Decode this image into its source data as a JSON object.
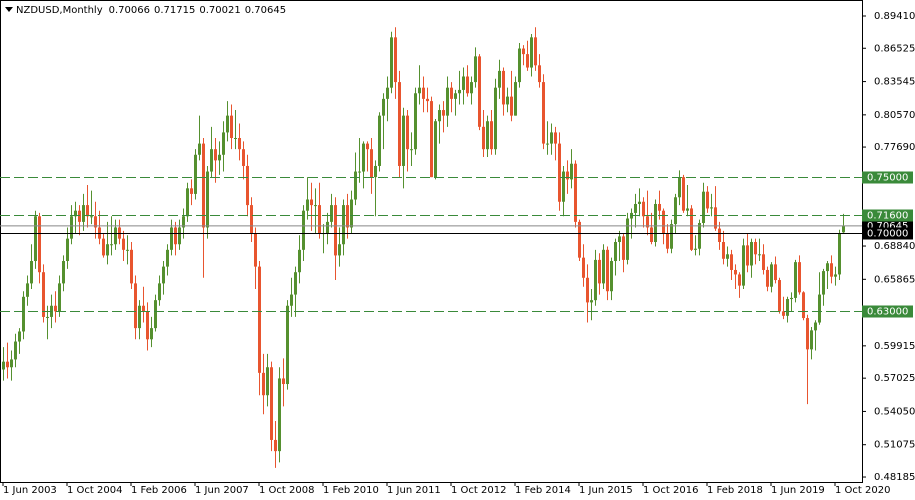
{
  "chart_data": {
    "type": "candlestick",
    "symbol": "NZDUSD,Monthly",
    "up_color": "#55902f",
    "down_color": "#e8552f",
    "xlim": [
      -0.75,
      214.75
    ],
    "ylim": [
      0.4774,
      0.9084
    ],
    "xticks": [
      {
        "value": 0,
        "label": "1 Jun 2003"
      },
      {
        "value": 16,
        "label": "1 Oct 2004"
      },
      {
        "value": 32,
        "label": "1 Feb 2006"
      },
      {
        "value": 48,
        "label": "1 Jun 2007"
      },
      {
        "value": 64,
        "label": "1 Oct 2008"
      },
      {
        "value": 80,
        "label": "1 Feb 2010"
      },
      {
        "value": 96,
        "label": "1 Jun 2011"
      },
      {
        "value": 112,
        "label": "1 Oct 2012"
      },
      {
        "value": 128,
        "label": "1 Feb 2014"
      },
      {
        "value": 144,
        "label": "1 Jun 2015"
      },
      {
        "value": 160,
        "label": "1 Oct 2016"
      },
      {
        "value": 176,
        "label": "1 Feb 2018"
      },
      {
        "value": 192,
        "label": "1 Jun 2019"
      },
      {
        "value": 208,
        "label": "1 Oct 2020"
      }
    ],
    "yticks": [
      {
        "value": 0.8941,
        "label": "0.89410"
      },
      {
        "value": 0.86525,
        "label": "0.86525"
      },
      {
        "value": 0.83545,
        "label": "0.83545"
      },
      {
        "value": 0.8057,
        "label": "0.80570"
      },
      {
        "value": 0.7769,
        "label": "0.77690"
      },
      {
        "value": 0.6884,
        "label": "0.68840"
      },
      {
        "value": 0.65865,
        "label": "0.65865"
      },
      {
        "value": 0.59915,
        "label": "0.59915"
      },
      {
        "value": 0.57025,
        "label": "0.57025"
      },
      {
        "value": 0.5405,
        "label": "0.54050"
      },
      {
        "value": 0.51075,
        "label": "0.51075"
      },
      {
        "value": 0.48185,
        "label": "0.48185"
      }
    ],
    "levels": [
      {
        "value": 0.75,
        "label": "0.75000",
        "color": "#3a8a3a",
        "dash": true
      },
      {
        "value": 0.716,
        "label": "0.71600",
        "color": "#3a8a3a",
        "dash": true
      },
      {
        "value": 0.63,
        "label": "0.63000",
        "color": "#3a8a3a",
        "dash": true
      },
      {
        "value": 0.7,
        "label": "0.70000",
        "color": "#000000",
        "dash": false
      }
    ],
    "open": [
      0.578,
      0.585,
      0.58,
      0.587,
      0.603,
      0.612,
      0.643,
      0.655,
      0.675,
      0.715,
      0.665,
      0.625,
      0.625,
      0.635,
      0.63,
      0.655,
      0.675,
      0.695,
      0.715,
      0.72,
      0.71,
      0.725,
      0.715,
      0.715,
      0.705,
      0.695,
      0.68,
      0.69,
      0.69,
      0.705,
      0.695,
      0.685,
      0.685,
      0.655,
      0.615,
      0.635,
      0.63,
      0.605,
      0.615,
      0.64,
      0.655,
      0.67,
      0.685,
      0.705,
      0.69,
      0.705,
      0.715,
      0.74,
      0.735,
      0.77,
      0.78,
      0.705,
      0.755,
      0.775,
      0.765,
      0.77,
      0.79,
      0.805,
      0.785,
      0.785,
      0.775,
      0.76,
      0.725,
      0.7,
      0.67,
      0.575,
      0.555,
      0.58,
      0.515,
      0.505,
      0.57,
      0.565,
      0.635,
      0.645,
      0.665,
      0.685,
      0.72,
      0.73,
      0.725,
      0.725,
      0.7,
      0.7,
      0.71,
      0.725,
      0.68,
      0.69,
      0.725,
      0.705,
      0.73,
      0.755,
      0.755,
      0.78,
      0.775,
      0.75,
      0.76,
      0.805,
      0.82,
      0.83,
      0.875,
      0.835,
      0.76,
      0.805,
      0.775,
      0.775,
      0.825,
      0.83,
      0.82,
      0.818,
      0.75,
      0.8,
      0.81,
      0.805,
      0.83,
      0.82,
      0.825,
      0.828,
      0.84,
      0.825,
      0.835,
      0.858,
      0.795,
      0.775,
      0.8,
      0.775,
      0.83,
      0.845,
      0.815,
      0.822,
      0.805,
      0.835,
      0.865,
      0.86,
      0.848,
      0.875,
      0.85,
      0.835,
      0.78,
      0.78,
      0.79,
      0.78,
      0.728,
      0.755,
      0.748,
      0.762,
      0.71,
      0.678,
      0.66,
      0.638,
      0.64,
      0.676,
      0.655,
      0.685,
      0.648,
      0.675,
      0.692,
      0.697,
      0.676,
      0.713,
      0.718,
      0.726,
      0.728,
      0.715,
      0.705,
      0.692,
      0.726,
      0.72,
      0.7,
      0.686,
      0.708,
      0.732,
      0.75,
      0.72,
      0.722,
      0.685,
      0.686,
      0.709,
      0.737,
      0.722,
      0.723,
      0.704,
      0.692,
      0.677,
      0.681,
      0.667,
      0.663,
      0.653,
      0.689,
      0.671,
      0.692,
      0.681,
      0.681,
      0.667,
      0.652,
      0.672,
      0.658,
      0.63,
      0.626,
      0.641,
      0.642,
      0.674,
      0.647,
      0.624,
      0.596,
      0.613,
      0.62,
      0.645,
      0.666,
      0.673,
      0.661,
      0.663,
      0.70066
    ],
    "high": [
      0.598,
      0.602,
      0.595,
      0.61,
      0.615,
      0.648,
      0.662,
      0.69,
      0.72,
      0.718,
      0.672,
      0.635,
      0.645,
      0.648,
      0.662,
      0.68,
      0.705,
      0.725,
      0.728,
      0.725,
      0.735,
      0.743,
      0.738,
      0.728,
      0.72,
      0.7,
      0.71,
      0.715,
      0.712,
      0.712,
      0.702,
      0.698,
      0.692,
      0.662,
      0.64,
      0.652,
      0.638,
      0.625,
      0.645,
      0.662,
      0.675,
      0.69,
      0.712,
      0.71,
      0.712,
      0.722,
      0.745,
      0.748,
      0.775,
      0.805,
      0.785,
      0.76,
      0.795,
      0.785,
      0.782,
      0.8,
      0.818,
      0.815,
      0.81,
      0.798,
      0.782,
      0.77,
      0.732,
      0.705,
      0.675,
      0.592,
      0.592,
      0.585,
      0.532,
      0.58,
      0.588,
      0.64,
      0.66,
      0.67,
      0.698,
      0.725,
      0.75,
      0.745,
      0.74,
      0.745,
      0.708,
      0.718,
      0.735,
      0.732,
      0.705,
      0.73,
      0.735,
      0.738,
      0.772,
      0.785,
      0.782,
      0.782,
      0.785,
      0.765,
      0.808,
      0.825,
      0.84,
      0.88,
      0.884,
      0.845,
      0.812,
      0.81,
      0.79,
      0.83,
      0.85,
      0.84,
      0.83,
      0.822,
      0.802,
      0.815,
      0.818,
      0.84,
      0.835,
      0.828,
      0.845,
      0.848,
      0.85,
      0.84,
      0.866,
      0.86,
      0.81,
      0.805,
      0.81,
      0.838,
      0.855,
      0.848,
      0.83,
      0.845,
      0.84,
      0.87,
      0.868,
      0.872,
      0.878,
      0.884,
      0.86,
      0.842,
      0.8,
      0.798,
      0.795,
      0.79,
      0.76,
      0.765,
      0.775,
      0.765,
      0.712,
      0.69,
      0.672,
      0.65,
      0.685,
      0.682,
      0.69,
      0.688,
      0.678,
      0.695,
      0.702,
      0.7,
      0.718,
      0.722,
      0.735,
      0.74,
      0.732,
      0.738,
      0.718,
      0.73,
      0.738,
      0.722,
      0.708,
      0.712,
      0.735,
      0.756,
      0.752,
      0.743,
      0.725,
      0.698,
      0.712,
      0.745,
      0.742,
      0.735,
      0.742,
      0.71,
      0.702,
      0.688,
      0.685,
      0.672,
      0.665,
      0.695,
      0.7,
      0.695,
      0.695,
      0.695,
      0.69,
      0.67,
      0.674,
      0.679,
      0.66,
      0.643,
      0.643,
      0.647,
      0.676,
      0.68,
      0.648,
      0.627,
      0.616,
      0.622,
      0.665,
      0.668,
      0.675,
      0.68,
      0.67,
      0.703,
      0.71715
    ],
    "low": [
      0.568,
      0.57,
      0.568,
      0.58,
      0.592,
      0.605,
      0.635,
      0.65,
      0.668,
      0.655,
      0.62,
      0.605,
      0.615,
      0.62,
      0.625,
      0.648,
      0.668,
      0.69,
      0.7,
      0.698,
      0.702,
      0.705,
      0.708,
      0.695,
      0.69,
      0.678,
      0.672,
      0.68,
      0.685,
      0.69,
      0.675,
      0.672,
      0.65,
      0.605,
      0.605,
      0.62,
      0.595,
      0.598,
      0.612,
      0.635,
      0.645,
      0.662,
      0.68,
      0.68,
      0.685,
      0.695,
      0.71,
      0.725,
      0.73,
      0.765,
      0.66,
      0.695,
      0.75,
      0.745,
      0.752,
      0.755,
      0.782,
      0.775,
      0.775,
      0.765,
      0.748,
      0.715,
      0.692,
      0.65,
      0.555,
      0.538,
      0.545,
      0.505,
      0.49,
      0.495,
      0.545,
      0.56,
      0.625,
      0.625,
      0.655,
      0.675,
      0.712,
      0.702,
      0.7,
      0.695,
      0.682,
      0.69,
      0.705,
      0.658,
      0.67,
      0.68,
      0.695,
      0.7,
      0.725,
      0.745,
      0.74,
      0.755,
      0.735,
      0.715,
      0.755,
      0.775,
      0.8,
      0.825,
      0.82,
      0.75,
      0.74,
      0.755,
      0.76,
      0.77,
      0.815,
      0.808,
      0.808,
      0.75,
      0.748,
      0.78,
      0.79,
      0.795,
      0.808,
      0.805,
      0.815,
      0.815,
      0.822,
      0.815,
      0.83,
      0.792,
      0.768,
      0.768,
      0.77,
      0.77,
      0.82,
      0.805,
      0.808,
      0.8,
      0.805,
      0.83,
      0.85,
      0.845,
      0.84,
      0.845,
      0.83,
      0.775,
      0.77,
      0.77,
      0.765,
      0.72,
      0.715,
      0.735,
      0.74,
      0.705,
      0.675,
      0.652,
      0.62,
      0.622,
      0.635,
      0.645,
      0.65,
      0.64,
      0.64,
      0.662,
      0.675,
      0.665,
      0.672,
      0.695,
      0.705,
      0.715,
      0.705,
      0.698,
      0.69,
      0.688,
      0.712,
      0.69,
      0.682,
      0.682,
      0.7,
      0.725,
      0.718,
      0.715,
      0.684,
      0.68,
      0.68,
      0.705,
      0.718,
      0.715,
      0.702,
      0.685,
      0.672,
      0.67,
      0.658,
      0.65,
      0.642,
      0.65,
      0.665,
      0.66,
      0.672,
      0.675,
      0.663,
      0.648,
      0.647,
      0.655,
      0.628,
      0.623,
      0.62,
      0.63,
      0.638,
      0.645,
      0.622,
      0.547,
      0.587,
      0.595,
      0.618,
      0.635,
      0.65,
      0.655,
      0.653,
      0.658,
      0.70021
    ],
    "close": [
      0.585,
      0.58,
      0.587,
      0.603,
      0.612,
      0.643,
      0.655,
      0.675,
      0.715,
      0.665,
      0.625,
      0.625,
      0.635,
      0.63,
      0.655,
      0.675,
      0.695,
      0.715,
      0.72,
      0.71,
      0.725,
      0.715,
      0.715,
      0.705,
      0.695,
      0.68,
      0.69,
      0.69,
      0.705,
      0.695,
      0.685,
      0.685,
      0.655,
      0.615,
      0.635,
      0.63,
      0.605,
      0.615,
      0.64,
      0.655,
      0.67,
      0.685,
      0.705,
      0.69,
      0.705,
      0.715,
      0.74,
      0.735,
      0.77,
      0.78,
      0.705,
      0.755,
      0.775,
      0.765,
      0.77,
      0.79,
      0.805,
      0.785,
      0.785,
      0.775,
      0.76,
      0.725,
      0.7,
      0.67,
      0.575,
      0.555,
      0.58,
      0.515,
      0.505,
      0.57,
      0.565,
      0.635,
      0.645,
      0.665,
      0.685,
      0.72,
      0.73,
      0.725,
      0.725,
      0.7,
      0.7,
      0.71,
      0.725,
      0.68,
      0.69,
      0.725,
      0.705,
      0.73,
      0.755,
      0.755,
      0.78,
      0.775,
      0.75,
      0.76,
      0.805,
      0.82,
      0.83,
      0.875,
      0.835,
      0.76,
      0.805,
      0.775,
      0.775,
      0.825,
      0.83,
      0.82,
      0.818,
      0.75,
      0.8,
      0.81,
      0.805,
      0.83,
      0.82,
      0.825,
      0.828,
      0.84,
      0.825,
      0.835,
      0.858,
      0.795,
      0.775,
      0.8,
      0.775,
      0.83,
      0.845,
      0.815,
      0.822,
      0.805,
      0.835,
      0.865,
      0.86,
      0.848,
      0.875,
      0.85,
      0.835,
      0.78,
      0.78,
      0.79,
      0.78,
      0.728,
      0.755,
      0.748,
      0.762,
      0.71,
      0.678,
      0.66,
      0.638,
      0.64,
      0.676,
      0.655,
      0.685,
      0.648,
      0.675,
      0.692,
      0.697,
      0.676,
      0.713,
      0.718,
      0.726,
      0.728,
      0.715,
      0.705,
      0.692,
      0.726,
      0.72,
      0.7,
      0.686,
      0.708,
      0.732,
      0.75,
      0.72,
      0.722,
      0.685,
      0.686,
      0.709,
      0.737,
      0.722,
      0.723,
      0.704,
      0.692,
      0.677,
      0.681,
      0.667,
      0.663,
      0.653,
      0.689,
      0.671,
      0.692,
      0.681,
      0.681,
      0.667,
      0.652,
      0.672,
      0.658,
      0.63,
      0.626,
      0.641,
      0.642,
      0.674,
      0.647,
      0.624,
      0.596,
      0.613,
      0.62,
      0.645,
      0.666,
      0.673,
      0.661,
      0.663,
      0.7,
      0.70645
    ]
  }
}
